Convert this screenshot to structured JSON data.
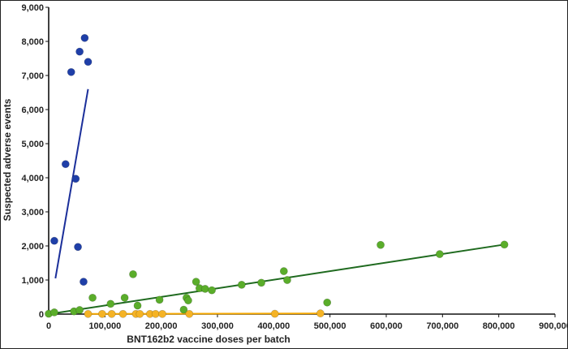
{
  "chart_data": {
    "type": "scatter",
    "title": "",
    "xlabel": "BNT162b2 vaccine doses per batch",
    "ylabel": "Suspected adverse events",
    "xlim": [
      0,
      900000
    ],
    "ylim": [
      0,
      9000
    ],
    "x_ticks": [
      0,
      100000,
      200000,
      300000,
      400000,
      500000,
      600000,
      700000,
      800000,
      900000
    ],
    "y_ticks": [
      0,
      1000,
      2000,
      3000,
      4000,
      5000,
      6000,
      7000,
      8000,
      9000
    ],
    "x_tick_labels": [
      "0",
      "100,000",
      "200,000",
      "300,000",
      "400,000",
      "500,000",
      "600,000",
      "700,000",
      "800,000",
      "900,000"
    ],
    "y_tick_labels": [
      "0",
      "1,000",
      "2,000",
      "3,000",
      "4,000",
      "5,000",
      "6,000",
      "7,000",
      "8,000",
      "9,000"
    ],
    "grid": false,
    "legend": "none",
    "series": [
      {
        "color": "#1f3fa8",
        "line_color": "#1b2f9a",
        "points": [
          [
            10000,
            2150
          ],
          [
            30000,
            4400
          ],
          [
            40000,
            7100
          ],
          [
            48000,
            3970
          ],
          [
            52000,
            1970
          ],
          [
            55000,
            7700
          ],
          [
            62000,
            950
          ],
          [
            64000,
            8100
          ],
          [
            70000,
            7400
          ]
        ],
        "trendline": [
          [
            12000,
            1050
          ],
          [
            70000,
            6600
          ]
        ]
      },
      {
        "color": "#5aad2a",
        "line_color": "#1f6a1f",
        "points": [
          [
            0,
            10
          ],
          [
            10000,
            50
          ],
          [
            45000,
            80
          ],
          [
            55000,
            120
          ],
          [
            78000,
            480
          ],
          [
            110000,
            300
          ],
          [
            135000,
            480
          ],
          [
            150000,
            1170
          ],
          [
            158000,
            250
          ],
          [
            197000,
            420
          ],
          [
            240000,
            130
          ],
          [
            245000,
            480
          ],
          [
            248000,
            400
          ],
          [
            262000,
            950
          ],
          [
            268000,
            760
          ],
          [
            278000,
            740
          ],
          [
            290000,
            700
          ],
          [
            343000,
            860
          ],
          [
            378000,
            920
          ],
          [
            418000,
            1260
          ],
          [
            424000,
            1000
          ],
          [
            495000,
            340
          ],
          [
            590000,
            2030
          ],
          [
            695000,
            1760
          ],
          [
            810000,
            2040
          ]
        ],
        "trendline": [
          [
            0,
            0
          ],
          [
            810000,
            2040
          ]
        ]
      },
      {
        "color": "#f5b325",
        "line_color": "#f5a800",
        "points": [
          [
            70000,
            5
          ],
          [
            95000,
            5
          ],
          [
            112000,
            5
          ],
          [
            132000,
            5
          ],
          [
            155000,
            5
          ],
          [
            162000,
            5
          ],
          [
            180000,
            5
          ],
          [
            190000,
            5
          ],
          [
            202000,
            5
          ],
          [
            250000,
            5
          ],
          [
            402000,
            10
          ],
          [
            483000,
            20
          ]
        ],
        "trendline": [
          [
            70000,
            5
          ],
          [
            483000,
            20
          ]
        ]
      }
    ]
  }
}
